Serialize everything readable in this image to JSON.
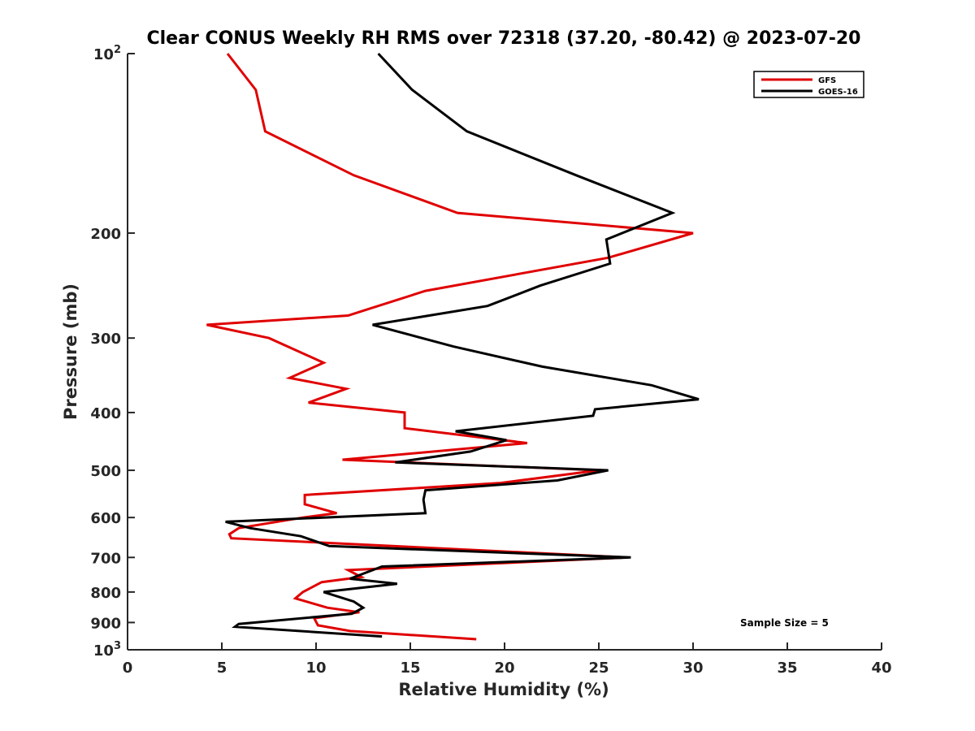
{
  "chart_data": {
    "type": "line",
    "title": "Clear CONUS Weekly RH RMS over 72318 (37.20, -80.42) @ 2023-07-20",
    "xlabel": "Relative Humidity (%)",
    "ylabel": "Pressure (mb)",
    "xlim": [
      0,
      40
    ],
    "ylim": [
      100,
      1000
    ],
    "yscale": "log",
    "y_reversed": true,
    "x_ticks": [
      "0",
      "5",
      "10",
      "15",
      "20",
      "25",
      "30",
      "35",
      "40"
    ],
    "y_ticks": [
      {
        "value": 100,
        "label": "10",
        "sup": "2"
      },
      {
        "value": 200,
        "label": "200",
        "sup": ""
      },
      {
        "value": 300,
        "label": "300",
        "sup": ""
      },
      {
        "value": 400,
        "label": "400",
        "sup": ""
      },
      {
        "value": 500,
        "label": "500",
        "sup": ""
      },
      {
        "value": 600,
        "label": "600",
        "sup": ""
      },
      {
        "value": 700,
        "label": "700",
        "sup": ""
      },
      {
        "value": 800,
        "label": "800",
        "sup": ""
      },
      {
        "value": 900,
        "label": "900",
        "sup": ""
      },
      {
        "value": 1000,
        "label": "10",
        "sup": "3"
      }
    ],
    "grid": false,
    "legend_position": "top-right",
    "annotation": "Sample Size = 5",
    "series": [
      {
        "name": "GFS",
        "color": "#e00000",
        "points": [
          [
            5.3,
            100
          ],
          [
            6.8,
            115
          ],
          [
            7.3,
            135
          ],
          [
            12.0,
            160
          ],
          [
            17.5,
            185
          ],
          [
            30.0,
            200
          ],
          [
            25.5,
            220
          ],
          [
            15.8,
            250
          ],
          [
            11.7,
            275
          ],
          [
            4.2,
            285
          ],
          [
            7.5,
            300
          ],
          [
            10.4,
            330
          ],
          [
            8.6,
            350
          ],
          [
            11.6,
            365
          ],
          [
            9.6,
            385
          ],
          [
            14.7,
            400
          ],
          [
            14.7,
            425
          ],
          [
            21.2,
            450
          ],
          [
            11.4,
            480
          ],
          [
            25.0,
            500
          ],
          [
            19.8,
            525
          ],
          [
            9.4,
            550
          ],
          [
            9.4,
            570
          ],
          [
            11.1,
            590
          ],
          [
            9.3,
            600
          ],
          [
            5.9,
            625
          ],
          [
            5.4,
            640
          ],
          [
            5.5,
            650
          ],
          [
            9.8,
            660
          ],
          [
            26.5,
            700
          ],
          [
            11.7,
            735
          ],
          [
            12.4,
            755
          ],
          [
            10.3,
            770
          ],
          [
            9.3,
            800
          ],
          [
            8.9,
            820
          ],
          [
            10.6,
            850
          ],
          [
            12.3,
            865
          ],
          [
            9.9,
            885
          ],
          [
            10.1,
            910
          ],
          [
            11.8,
            930
          ],
          [
            18.5,
            960
          ]
        ]
      },
      {
        "name": "GOES-16",
        "color": "#000000",
        "points": [
          [
            13.3,
            100
          ],
          [
            15.1,
            115
          ],
          [
            18.0,
            135
          ],
          [
            23.8,
            160
          ],
          [
            28.9,
            185
          ],
          [
            25.4,
            205
          ],
          [
            25.6,
            225
          ],
          [
            21.9,
            245
          ],
          [
            19.1,
            265
          ],
          [
            13.0,
            285
          ],
          [
            17.3,
            310
          ],
          [
            22.0,
            335
          ],
          [
            27.8,
            360
          ],
          [
            30.3,
            380
          ],
          [
            24.8,
            395
          ],
          [
            24.7,
            405
          ],
          [
            17.4,
            430
          ],
          [
            20.1,
            445
          ],
          [
            18.2,
            465
          ],
          [
            14.2,
            485
          ],
          [
            25.5,
            500
          ],
          [
            22.8,
            520
          ],
          [
            15.8,
            540
          ],
          [
            15.7,
            560
          ],
          [
            15.8,
            590
          ],
          [
            5.2,
            610
          ],
          [
            6.5,
            625
          ],
          [
            9.2,
            645
          ],
          [
            10.7,
            670
          ],
          [
            26.7,
            700
          ],
          [
            13.5,
            725
          ],
          [
            11.8,
            760
          ],
          [
            14.3,
            775
          ],
          [
            10.4,
            800
          ],
          [
            12.0,
            830
          ],
          [
            12.5,
            850
          ],
          [
            11.9,
            870
          ],
          [
            5.9,
            905
          ],
          [
            5.7,
            915
          ],
          [
            13.5,
            950
          ]
        ]
      }
    ]
  }
}
